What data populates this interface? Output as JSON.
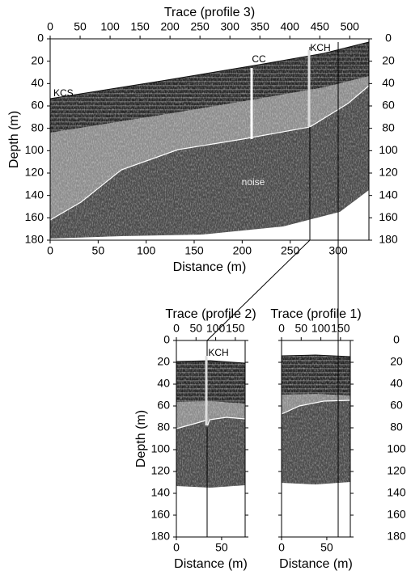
{
  "chart_data": [
    {
      "type": "section",
      "x2label": "Trace (profile 3)",
      "x2lim": [
        0,
        532
      ],
      "x2ticks": [
        0,
        50,
        100,
        150,
        200,
        250,
        300,
        350,
        400,
        450,
        500
      ],
      "xlabel": "Distance (m)",
      "xlim": [
        0,
        332
      ],
      "xticks": [
        0,
        50,
        100,
        150,
        200,
        250,
        300
      ],
      "ylabel": "Depth (m)",
      "ylim": [
        0,
        180
      ],
      "yticks": [
        0,
        20,
        40,
        60,
        80,
        100,
        120,
        140,
        160,
        180
      ],
      "y_inverted": true,
      "annotations": [
        "CC",
        "KCH",
        "KCS",
        "noise"
      ]
    },
    {
      "type": "section",
      "x2label": "Trace (profile 2)",
      "x2lim": [
        0,
        175
      ],
      "x2ticks": [
        0,
        50,
        100,
        150
      ],
      "xlabel": "Distance (m)",
      "xlim": [
        0,
        76
      ],
      "xticks": [
        0,
        50
      ],
      "ylabel": "Depth (m)",
      "ylim": [
        0,
        180
      ],
      "yticks": [
        0,
        20,
        40,
        60,
        80,
        100,
        120,
        140,
        160,
        180
      ],
      "y_inverted": true,
      "annotations": [
        "KCH"
      ]
    },
    {
      "type": "section",
      "x2label": "Trace (profile 1)",
      "x2lim": [
        0,
        175
      ],
      "x2ticks": [
        0,
        50,
        100,
        150
      ],
      "xlabel": "Distance (m)",
      "xlim": [
        0,
        76
      ],
      "xticks": [
        0,
        50
      ],
      "ylim": [
        0,
        180
      ],
      "yticks": [
        0,
        20,
        40,
        60,
        80,
        100,
        120,
        140,
        160,
        180
      ],
      "y_inverted": true,
      "annotations": []
    }
  ]
}
